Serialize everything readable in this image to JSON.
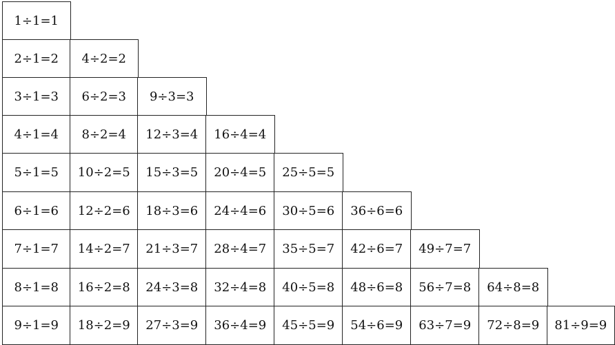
{
  "rows": [
    [
      "1÷1=1"
    ],
    [
      "2÷1=2",
      "4÷2=2"
    ],
    [
      "3÷1=3",
      "6÷2=3",
      "9÷3=3"
    ],
    [
      "4÷1=4",
      "8÷2=4",
      "12÷3=4",
      "16÷4=4"
    ],
    [
      "5÷1=5",
      "10÷2=5",
      "15÷3=5",
      "20÷4=5",
      "25÷5=5"
    ],
    [
      "6÷1=6",
      "12÷2=6",
      "18÷3=6",
      "24÷4=6",
      "30÷5=6",
      "36÷6=6"
    ],
    [
      "7÷1=7",
      "14÷2=7",
      "21÷3=7",
      "28÷4=7",
      "35÷5=7",
      "42÷6=7",
      "49÷7=7"
    ],
    [
      "8÷1=8",
      "16÷2=8",
      "24÷3=8",
      "32÷4=8",
      "40÷5=8",
      "48÷6=8",
      "56÷7=8",
      "64÷8=8"
    ],
    [
      "9÷1=9",
      "18÷2=9",
      "27÷3=9",
      "36÷4=9",
      "45÷5=9",
      "54÷6=9",
      "63÷7=9",
      "72÷8=9",
      "81÷9=9"
    ]
  ]
}
